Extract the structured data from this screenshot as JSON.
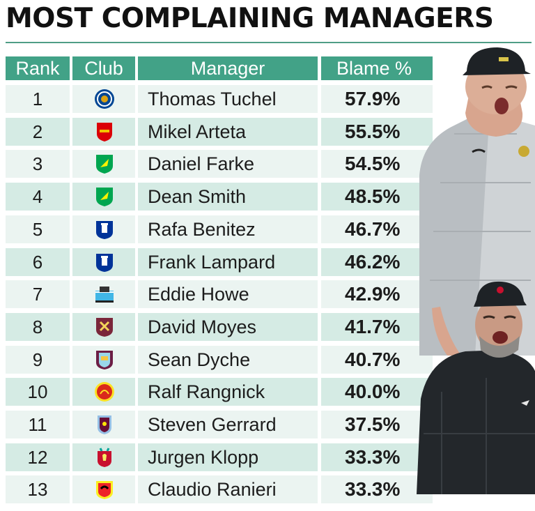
{
  "title": "MOST COMPLAINING MANAGERS",
  "headers": {
    "rank": "Rank",
    "club": "Club",
    "manager": "Manager",
    "blame": "Blame %"
  },
  "rows": [
    {
      "rank": "1",
      "manager": "Thomas Tuchel",
      "blame": "57.9%",
      "club_icon": "chelsea-crest-icon"
    },
    {
      "rank": "2",
      "manager": "Mikel Arteta",
      "blame": "55.5%",
      "club_icon": "arsenal-crest-icon"
    },
    {
      "rank": "3",
      "manager": "Daniel Farke",
      "blame": "54.5%",
      "club_icon": "norwich-crest-icon"
    },
    {
      "rank": "4",
      "manager": "Dean Smith",
      "blame": "48.5%",
      "club_icon": "norwich-crest-icon"
    },
    {
      "rank": "5",
      "manager": "Rafa Benitez",
      "blame": "46.7%",
      "club_icon": "everton-crest-icon"
    },
    {
      "rank": "6",
      "manager": "Frank Lampard",
      "blame": "46.2%",
      "club_icon": "everton-crest-icon"
    },
    {
      "rank": "7",
      "manager": "Eddie Howe",
      "blame": "42.9%",
      "club_icon": "newcastle-crest-icon"
    },
    {
      "rank": "8",
      "manager": "David Moyes",
      "blame": "41.7%",
      "club_icon": "west-ham-crest-icon"
    },
    {
      "rank": "9",
      "manager": "Sean Dyche",
      "blame": "40.7%",
      "club_icon": "burnley-crest-icon"
    },
    {
      "rank": "10",
      "manager": "Ralf Rangnick",
      "blame": "40.0%",
      "club_icon": "man-utd-crest-icon"
    },
    {
      "rank": "11",
      "manager": "Steven Gerrard",
      "blame": "37.5%",
      "club_icon": "aston-villa-crest-icon"
    },
    {
      "rank": "12",
      "manager": "Jurgen Klopp",
      "blame": "33.3%",
      "club_icon": "liverpool-crest-icon"
    },
    {
      "rank": "13",
      "manager": "Claudio Ranieri",
      "blame": "33.3%",
      "club_icon": "watford-crest-icon"
    }
  ],
  "colors": {
    "header": "#42a287",
    "row_dark": "#d5ebe4",
    "row_light": "#ebf4f1"
  }
}
